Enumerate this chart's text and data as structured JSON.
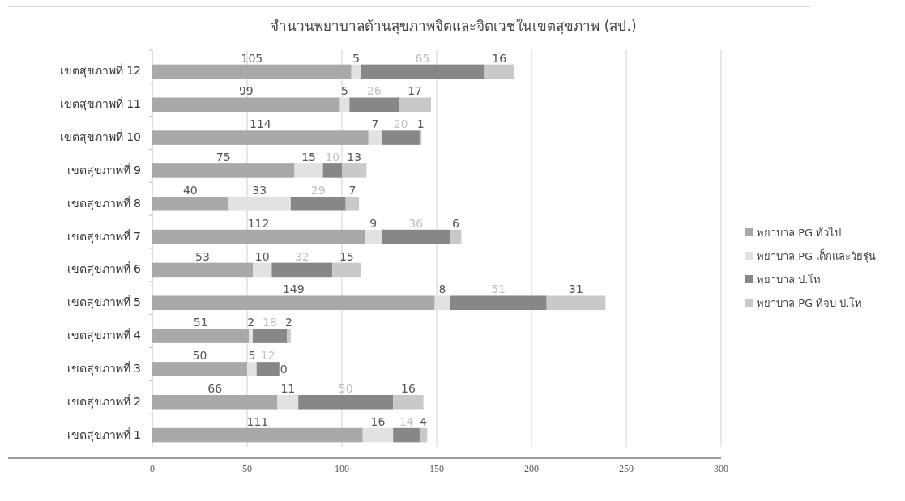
{
  "chart_data": {
    "type": "bar",
    "orientation": "horizontal",
    "stacked": true,
    "title": "จำนวนพยาบาลด้านสุขภาพจิตและจิตเวชในเขตสุขภาพ (สป.)",
    "categories": [
      "เขตสุขภาพที่ 12",
      "เขตสุขภาพที่ 11",
      "เขตสุขภาพที่ 10",
      "เขตสุขภาพที่ 9",
      "เขตสุขภาพที่ 8",
      "เขตสุขภาพที่ 7",
      "เขตสุขภาพที่ 6",
      "เขตสุขภาพที่ 5",
      "เขตสุขภาพที่ 4",
      "เขตสุขภาพที่ 3",
      "เขตสุขภาพที่ 2",
      "เขตสุขภาพที่ 1"
    ],
    "series": [
      {
        "name": "พยาบาล PG ทั่วไป",
        "color": "#a9a9a9",
        "values": [
          105,
          99,
          114,
          75,
          40,
          112,
          53,
          149,
          51,
          50,
          66,
          111
        ]
      },
      {
        "name": "พยาบาล PG เด็กและวัยรุ่น",
        "color": "#e2e2e2",
        "values": [
          5,
          5,
          7,
          15,
          33,
          9,
          10,
          8,
          2,
          5,
          11,
          16
        ]
      },
      {
        "name": "พยาบาล ป.โท",
        "color": "#878787",
        "values": [
          65,
          26,
          20,
          10,
          29,
          36,
          32,
          51,
          18,
          12,
          50,
          14
        ]
      },
      {
        "name": "พยาบาล PG ที่จบ ป.โท",
        "color": "#c9c9c9",
        "values": [
          16,
          17,
          1,
          13,
          7,
          6,
          15,
          31,
          2,
          0,
          16,
          4
        ]
      }
    ],
    "xlim": [
      0,
      300
    ],
    "xticks": [
      0,
      50,
      100,
      150,
      200,
      250,
      300
    ],
    "grid": "x",
    "legend": "right",
    "data_labels": true
  }
}
